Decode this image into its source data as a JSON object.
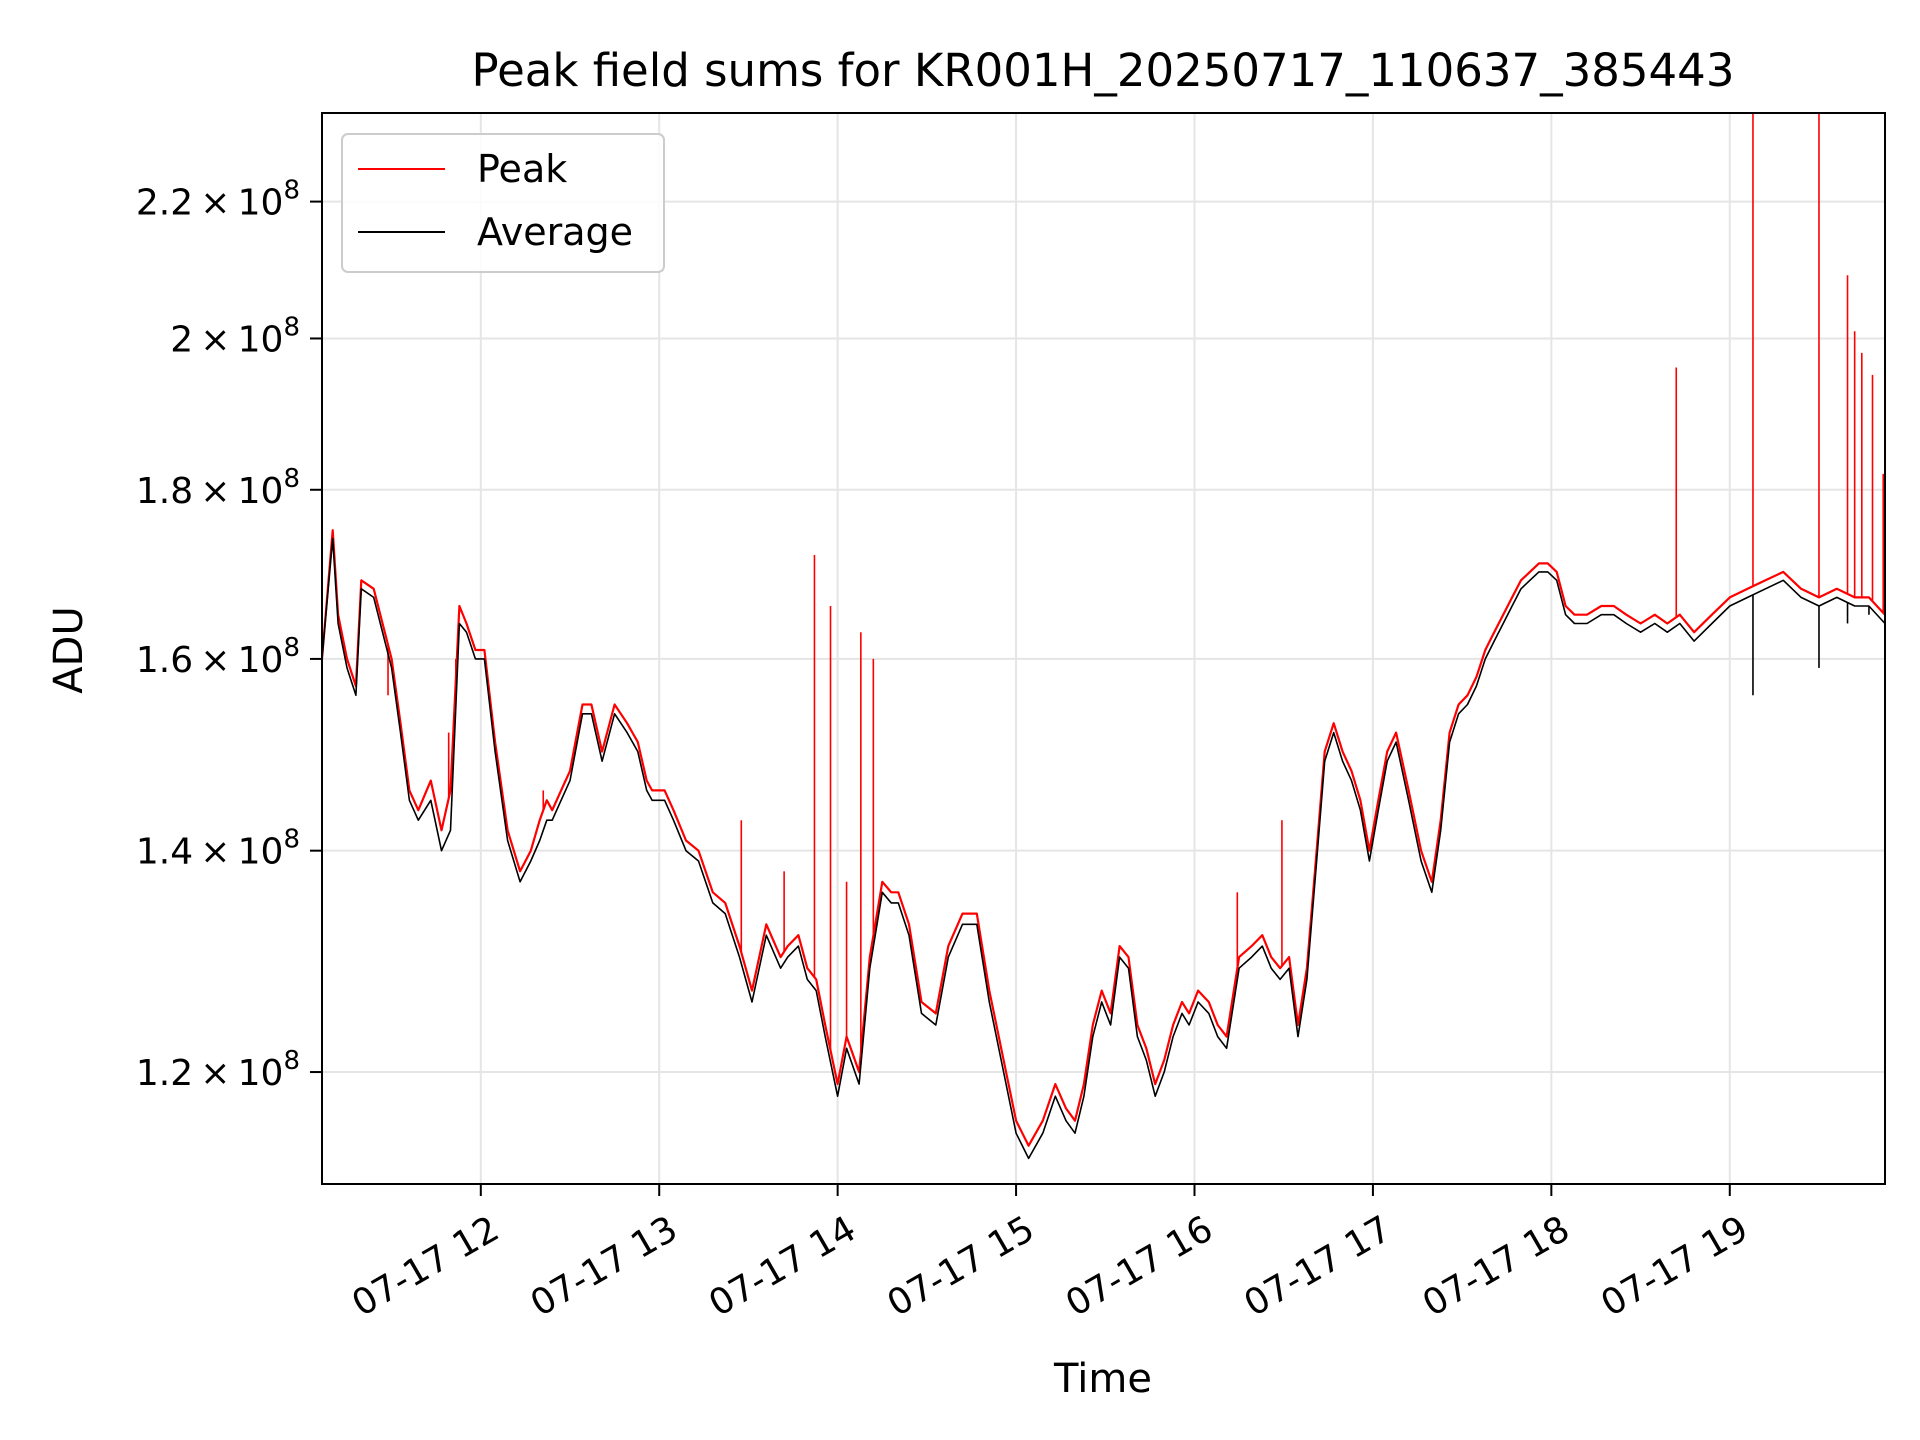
{
  "chart_data": {
    "type": "line",
    "title": "Peak field sums for KR001H_20250717_110637_385443",
    "xlabel": "Time",
    "ylabel": "ADU",
    "x_ticks": [
      "07-17 12",
      "07-17 13",
      "07-17 14",
      "07-17 15",
      "07-17 16",
      "07-17 17",
      "07-17 18",
      "07-17 19"
    ],
    "x_tick_hours": [
      12,
      13,
      14,
      15,
      16,
      17,
      18,
      19
    ],
    "xlim_hours": [
      11.11,
      19.87
    ],
    "y_ticks": [
      {
        "value": 120000000,
        "mantissa": "1.2",
        "exponent": "8"
      },
      {
        "value": 140000000,
        "mantissa": "1.4",
        "exponent": "8"
      },
      {
        "value": 160000000,
        "mantissa": "1.6",
        "exponent": "8"
      },
      {
        "value": 180000000,
        "mantissa": "1.8",
        "exponent": "8"
      },
      {
        "value": 200000000,
        "mantissa": "2",
        "exponent": "8"
      },
      {
        "value": 220000000,
        "mantissa": "2.2",
        "exponent": "8"
      }
    ],
    "ylim": [
      111000000,
      234000000
    ],
    "y_scale": "log",
    "grid": true,
    "legend_position": "top-left",
    "series": [
      {
        "name": "Peak",
        "color": "#ff0000",
        "x_hours": [
          11.11,
          11.17,
          11.2,
          11.25,
          11.3,
          11.33,
          11.4,
          11.5,
          11.55,
          11.6,
          11.65,
          11.72,
          11.78,
          11.83,
          11.88,
          11.92,
          11.97,
          12.02,
          12.08,
          12.15,
          12.22,
          12.28,
          12.33,
          12.37,
          12.4,
          12.45,
          12.5,
          12.57,
          12.62,
          12.68,
          12.75,
          12.82,
          12.88,
          12.93,
          12.96,
          12.99,
          13.03,
          13.08,
          13.15,
          13.22,
          13.3,
          13.37,
          13.45,
          13.52,
          13.6,
          13.68,
          13.72,
          13.78,
          13.83,
          13.88,
          13.93,
          14.0,
          14.05,
          14.12,
          14.18,
          14.25,
          14.3,
          14.34,
          14.4,
          14.47,
          14.55,
          14.62,
          14.7,
          14.78,
          14.85,
          14.93,
          15.0,
          15.07,
          15.15,
          15.22,
          15.28,
          15.33,
          15.38,
          15.43,
          15.48,
          15.53,
          15.58,
          15.63,
          15.68,
          15.73,
          15.78,
          15.83,
          15.88,
          15.93,
          15.97,
          16.02,
          16.08,
          16.13,
          16.18,
          16.25,
          16.32,
          16.38,
          16.43,
          16.48,
          16.53,
          16.58,
          16.63,
          16.68,
          16.73,
          16.78,
          16.83,
          16.88,
          16.93,
          16.98,
          17.03,
          17.08,
          17.13,
          17.2,
          17.27,
          17.33,
          17.38,
          17.43,
          17.48,
          17.53,
          17.58,
          17.63,
          17.68,
          17.73,
          17.78,
          17.83,
          17.88,
          17.93,
          17.98,
          18.03,
          18.08,
          18.13,
          18.2,
          18.28,
          18.35,
          18.42,
          18.5,
          18.58,
          18.65,
          18.72,
          18.8,
          18.9,
          19.0,
          19.1,
          19.2,
          19.3,
          19.4,
          19.5,
          19.6,
          19.7,
          19.78,
          19.87
        ],
        "values": [
          160000000,
          175000000,
          165000000,
          160000000,
          157000000,
          169000000,
          168000000,
          160000000,
          153000000,
          146000000,
          144000000,
          147000000,
          142000000,
          146000000,
          166000000,
          164000000,
          161000000,
          161000000,
          151000000,
          142000000,
          138000000,
          140000000,
          143000000,
          145000000,
          144000000,
          146000000,
          148000000,
          155000000,
          155000000,
          150000000,
          155000000,
          153000000,
          151000000,
          147000000,
          146000000,
          146000000,
          146000000,
          144000000,
          141000000,
          140000000,
          136000000,
          135000000,
          131000000,
          127000000,
          133000000,
          130000000,
          131000000,
          132000000,
          129000000,
          128000000,
          124000000,
          119000000,
          123000000,
          120000000,
          130000000,
          137000000,
          136000000,
          136000000,
          133000000,
          126000000,
          125000000,
          131000000,
          134000000,
          134000000,
          127000000,
          121000000,
          116000000,
          114000000,
          116000000,
          119000000,
          117000000,
          116000000,
          119000000,
          124000000,
          127000000,
          125000000,
          131000000,
          130000000,
          124000000,
          122000000,
          119000000,
          121000000,
          124000000,
          126000000,
          125000000,
          127000000,
          126000000,
          124000000,
          123000000,
          130000000,
          131000000,
          132000000,
          130000000,
          129000000,
          130000000,
          124000000,
          129000000,
          139000000,
          150000000,
          153000000,
          150000000,
          148000000,
          145000000,
          140000000,
          145000000,
          150000000,
          152000000,
          146000000,
          140000000,
          137000000,
          143000000,
          152000000,
          155000000,
          156000000,
          158000000,
          161000000,
          163000000,
          165000000,
          167000000,
          169000000,
          170000000,
          171000000,
          171000000,
          170000000,
          166000000,
          165000000,
          165000000,
          166000000,
          166000000,
          165000000,
          164000000,
          165000000,
          164000000,
          165000000,
          163000000,
          165000000,
          167000000,
          168000000,
          169000000,
          170000000,
          168000000,
          167000000,
          168000000,
          167000000,
          167000000,
          165000000
        ],
        "spikes": [
          {
            "x_hour": 11.48,
            "value": 156000000
          },
          {
            "x_hour": 11.82,
            "value": 152000000
          },
          {
            "x_hour": 11.86,
            "value": 160000000
          },
          {
            "x_hour": 12.35,
            "value": 146000000
          },
          {
            "x_hour": 12.47,
            "value": 147000000
          },
          {
            "x_hour": 13.46,
            "value": 143000000
          },
          {
            "x_hour": 13.7,
            "value": 138000000
          },
          {
            "x_hour": 13.87,
            "value": 172000000
          },
          {
            "x_hour": 13.96,
            "value": 166000000
          },
          {
            "x_hour": 14.05,
            "value": 137000000
          },
          {
            "x_hour": 14.13,
            "value": 163000000
          },
          {
            "x_hour": 14.2,
            "value": 160000000
          },
          {
            "x_hour": 16.24,
            "value": 136000000
          },
          {
            "x_hour": 16.49,
            "value": 143000000
          },
          {
            "x_hour": 18.7,
            "value": 196000000
          },
          {
            "x_hour": 19.13,
            "value": 234000000
          },
          {
            "x_hour": 19.5,
            "value": 234000000
          },
          {
            "x_hour": 19.66,
            "value": 209000000
          },
          {
            "x_hour": 19.7,
            "value": 201000000
          },
          {
            "x_hour": 19.74,
            "value": 198000000
          },
          {
            "x_hour": 19.8,
            "value": 195000000
          },
          {
            "x_hour": 19.86,
            "value": 182000000
          }
        ]
      },
      {
        "name": "Average",
        "color": "#000000",
        "x_hours": [
          11.11,
          11.17,
          11.2,
          11.25,
          11.3,
          11.33,
          11.4,
          11.5,
          11.55,
          11.6,
          11.65,
          11.72,
          11.78,
          11.83,
          11.88,
          11.92,
          11.97,
          12.02,
          12.08,
          12.15,
          12.22,
          12.28,
          12.33,
          12.37,
          12.4,
          12.45,
          12.5,
          12.57,
          12.62,
          12.68,
          12.75,
          12.82,
          12.88,
          12.93,
          12.96,
          12.99,
          13.03,
          13.08,
          13.15,
          13.22,
          13.3,
          13.37,
          13.45,
          13.52,
          13.6,
          13.68,
          13.72,
          13.78,
          13.83,
          13.88,
          13.93,
          14.0,
          14.05,
          14.12,
          14.18,
          14.25,
          14.3,
          14.34,
          14.4,
          14.47,
          14.55,
          14.62,
          14.7,
          14.78,
          14.85,
          14.93,
          15.0,
          15.07,
          15.15,
          15.22,
          15.28,
          15.33,
          15.38,
          15.43,
          15.48,
          15.53,
          15.58,
          15.63,
          15.68,
          15.73,
          15.78,
          15.83,
          15.88,
          15.93,
          15.97,
          16.02,
          16.08,
          16.13,
          16.18,
          16.25,
          16.32,
          16.38,
          16.43,
          16.48,
          16.53,
          16.58,
          16.63,
          16.68,
          16.73,
          16.78,
          16.83,
          16.88,
          16.93,
          16.98,
          17.03,
          17.08,
          17.13,
          17.2,
          17.27,
          17.33,
          17.38,
          17.43,
          17.48,
          17.53,
          17.58,
          17.63,
          17.68,
          17.73,
          17.78,
          17.83,
          17.88,
          17.93,
          17.98,
          18.03,
          18.08,
          18.13,
          18.2,
          18.28,
          18.35,
          18.42,
          18.5,
          18.58,
          18.65,
          18.72,
          18.8,
          18.9,
          19.0,
          19.1,
          19.2,
          19.3,
          19.4,
          19.5,
          19.6,
          19.7,
          19.78,
          19.87
        ],
        "values": [
          160000000,
          174000000,
          164000000,
          159000000,
          156000000,
          168000000,
          167000000,
          159000000,
          152000000,
          145000000,
          143000000,
          145000000,
          140000000,
          142000000,
          164000000,
          163000000,
          160000000,
          160000000,
          150000000,
          141000000,
          137000000,
          139000000,
          141000000,
          143000000,
          143000000,
          145000000,
          147000000,
          154000000,
          154000000,
          149000000,
          154000000,
          152000000,
          150000000,
          146000000,
          145000000,
          145000000,
          145000000,
          143000000,
          140000000,
          139000000,
          135000000,
          134000000,
          130000000,
          126000000,
          132000000,
          129000000,
          130000000,
          131000000,
          128000000,
          127000000,
          123000000,
          118000000,
          122000000,
          119000000,
          129000000,
          136000000,
          135000000,
          135000000,
          132000000,
          125000000,
          124000000,
          130000000,
          133000000,
          133000000,
          126000000,
          120000000,
          115000000,
          113000000,
          115000000,
          118000000,
          116000000,
          115000000,
          118000000,
          123000000,
          126000000,
          124000000,
          130000000,
          129000000,
          123000000,
          121000000,
          118000000,
          120000000,
          123000000,
          125000000,
          124000000,
          126000000,
          125000000,
          123000000,
          122000000,
          129000000,
          130000000,
          131000000,
          129000000,
          128000000,
          129000000,
          123000000,
          128000000,
          138000000,
          149000000,
          152000000,
          149000000,
          147000000,
          144000000,
          139000000,
          144000000,
          149000000,
          151000000,
          145000000,
          139000000,
          136000000,
          142000000,
          151000000,
          154000000,
          155000000,
          157000000,
          160000000,
          162000000,
          164000000,
          166000000,
          168000000,
          169000000,
          170000000,
          170000000,
          169000000,
          165000000,
          164000000,
          164000000,
          165000000,
          165000000,
          164000000,
          163000000,
          164000000,
          163000000,
          164000000,
          162000000,
          164000000,
          166000000,
          167000000,
          168000000,
          169000000,
          167000000,
          166000000,
          167000000,
          166000000,
          166000000,
          164000000
        ],
        "spikes": [
          {
            "x_hour": 19.13,
            "value": 156000000
          },
          {
            "x_hour": 19.5,
            "value": 159000000
          },
          {
            "x_hour": 19.66,
            "value": 164000000
          },
          {
            "x_hour": 19.78,
            "value": 165000000
          }
        ]
      }
    ]
  }
}
